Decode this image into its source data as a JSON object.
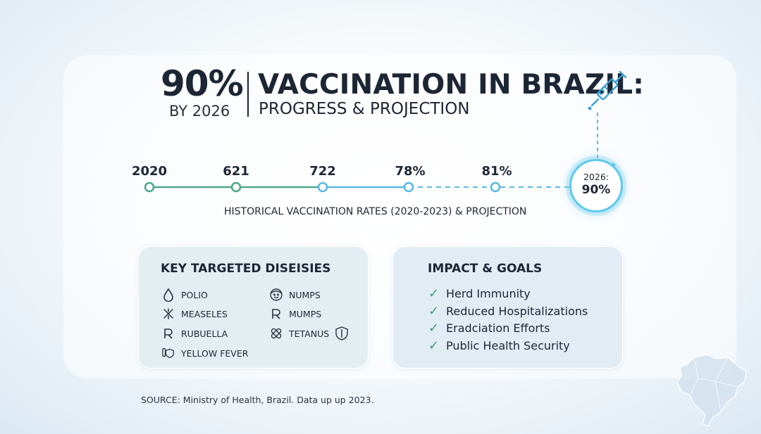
{
  "header": {
    "big_percent": "90%",
    "by_year": "BY 2026",
    "title": "VACCINATION IN BRAZIL:",
    "subtitle": "PROGRESS & PROJECTION"
  },
  "timeline": {
    "labels": [
      "2020",
      "621",
      "722",
      "78%",
      "81%"
    ],
    "goal_year": "2026:",
    "goal_value": "90%",
    "caption": "HISTORICAL VACCINATION RATES (2020-2023) & PROJECTION"
  },
  "diseases_card": {
    "title": "KEY TARGETED DISEISIES",
    "items": [
      {
        "label": "POLIO",
        "icon": "drop-icon"
      },
      {
        "label": "MEASELES",
        "icon": "virus-icon"
      },
      {
        "label": "RUBUELLA",
        "icon": "rx-icon"
      },
      {
        "label": "YELLOW FEVER",
        "icon": "vial-shield-icon"
      },
      {
        "label": "NUMPS",
        "icon": "face-icon"
      },
      {
        "label": "MUMPS",
        "icon": "rx-icon"
      },
      {
        "label": "TETANUS",
        "icon": "bandage-shield-icon"
      }
    ]
  },
  "impact_card": {
    "title": "IMPACT & GOALS",
    "items": [
      "Herd Immunity",
      "Reduced Hospitalizations",
      "Eradciation Efforts",
      "Public Health Security"
    ]
  },
  "footer": {
    "source": "SOURCE: Ministry of Health, Brazil. Data up up 2023."
  },
  "colors": {
    "historical_line": "#4aa88a",
    "projection_line": "#5ab8e4",
    "goal_ring": "#5cc9ec",
    "check": "#3aa36b",
    "text": "#1c2634"
  }
}
